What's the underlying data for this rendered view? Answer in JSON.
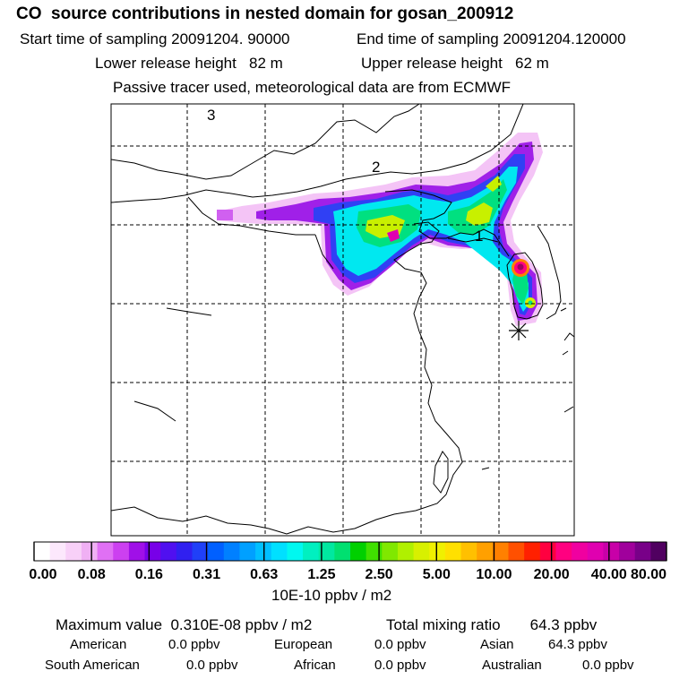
{
  "header": {
    "title": "CO  source contributions in nested domain for gosan_200912",
    "start_sampling_label": "Start time of sampling 20091204. 90000",
    "end_sampling_label": "End time of sampling 20091204.120000",
    "lower_release_label": "Lower release height   82 m",
    "upper_release_label": "Upper release height   62 m",
    "tracer_note": "Passive tracer used, meteorological data are from ECMWF"
  },
  "map": {
    "region_labels": [
      "3",
      "2",
      "1"
    ],
    "receptor_marker": "receptor-star-icon"
  },
  "colorbar": {
    "tick_labels": [
      "0.00",
      "0.08",
      "0.16",
      "0.31",
      "0.63",
      "1.25",
      "2.50",
      "5.00",
      "10.00",
      "20.00",
      "40.00",
      "80.00"
    ],
    "units_label": "10E-10 ppbv / m2",
    "colors": [
      "#ffffff",
      "#fce8fc",
      "#f8d0f8",
      "#f0b0f4",
      "#e070f4",
      "#cc40f0",
      "#a010e8",
      "#7800e8",
      "#5010f0",
      "#3020f0",
      "#2040f8",
      "#0060ff",
      "#0080ff",
      "#00a0ff",
      "#00c0ff",
      "#00e0ff",
      "#00f8f0",
      "#00f0c0",
      "#00e8a0",
      "#00e070",
      "#00d000",
      "#40e000",
      "#80e800",
      "#b0f000",
      "#d8f000",
      "#f0f000",
      "#ffe000",
      "#ffc000",
      "#ffa000",
      "#ff8000",
      "#ff5000",
      "#ff2000",
      "#ff0040",
      "#ff0080",
      "#f000a0",
      "#e000b0",
      "#c800a8",
      "#a0009c",
      "#780088",
      "#500060"
    ]
  },
  "stats": {
    "max_value_label": "Maximum value  0.310E-08 ppbv / m2",
    "total_mixing_label": "Total mixing ratio       64.3 ppbv",
    "american_label": "American",
    "american_value": "0.0 ppbv",
    "european_label": "European",
    "european_value": "0.0 ppbv",
    "asian_label": "Asian",
    "asian_value": "64.3 ppbv",
    "south_american_label": "South American",
    "south_american_value": "0.0 ppbv",
    "african_label": "African",
    "african_value": "0.0 ppbv",
    "australian_label": "Australian",
    "australian_value": "0.0 ppbv"
  }
}
